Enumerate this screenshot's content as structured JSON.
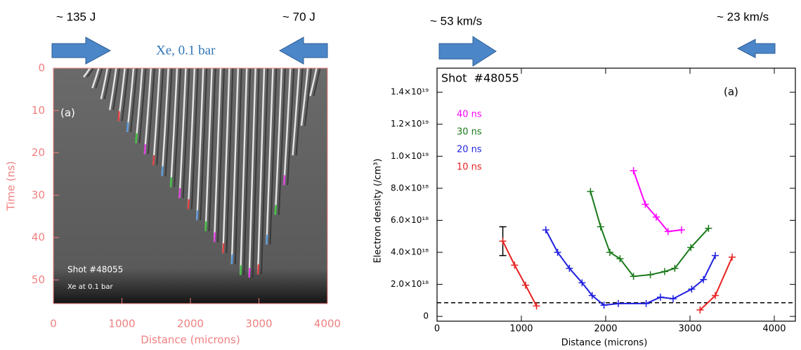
{
  "chart_data": [
    {
      "type": "image",
      "y_inverted": true,
      "axis_color": "#f08080",
      "xlabel": "Distance (microns)",
      "ylabel": "Time (ns)",
      "xlim": [
        0,
        4000
      ],
      "ylim": [
        0,
        55.6
      ],
      "xticks": [
        0,
        1000,
        2000,
        3000,
        4000
      ],
      "yticks": [
        0,
        10,
        20,
        30,
        40,
        50
      ],
      "annotations": [
        "~ 135 J",
        "~ 70 J",
        "Xe, 0.1 bar",
        "(a)",
        "Shot #48055",
        "Xe at 0.1 bar"
      ]
    },
    {
      "type": "line",
      "xlabel": "Distance (microns)",
      "ylabel": "Electron density (/cm³)",
      "xlim": [
        0,
        4250
      ],
      "ylim": [
        -3e+17,
        1.55e+19
      ],
      "xticks": [
        0,
        1000,
        2000,
        3000,
        4000
      ],
      "yticks": [
        0,
        {
          "value": 2e+18,
          "label": "2.0×10¹⁸"
        },
        {
          "value": 4e+18,
          "label": "4.0×10¹⁸"
        },
        {
          "value": 6e+18,
          "label": "6.0×10¹⁸"
        },
        {
          "value": 8e+18,
          "label": "8.0×10¹⁸"
        },
        {
          "value": 1e+19,
          "label": "1.0×10¹⁹"
        },
        {
          "value": 1.2e+19,
          "label": "1.2×10¹⁹"
        },
        {
          "value": 1.4e+19,
          "label": "1.4×10¹⁹"
        }
      ],
      "legend": "upper left",
      "annotations": [
        "~ 53 km/s",
        "~ 23 km/s",
        "Shot  #48055",
        "(a)"
      ],
      "series": [
        {
          "name": "40 ns",
          "color": "#ff00ff",
          "x": [
            2330,
            2470,
            2600,
            2740,
            2900
          ],
          "values": [
            9.1e+18,
            7e+18,
            6.2e+18,
            5.3e+18,
            5.4e+18
          ]
        },
        {
          "name": "30 ns",
          "color": "#1a7a1a",
          "x": [
            1820,
            1940,
            2050,
            2170,
            2330,
            2530,
            2700,
            2820,
            3010,
            3220
          ],
          "values": [
            7.8e+18,
            5.6e+18,
            4e+18,
            3.6e+18,
            2.5e+18,
            2.6e+18,
            2.8e+18,
            3e+18,
            4.3e+18,
            5.5e+18
          ]
        },
        {
          "name": "20 ns",
          "color": "#1f1fe0",
          "x": [
            1290,
            1430,
            1570,
            1720,
            1840,
            1980,
            2150,
            2480,
            2650,
            2800,
            3020,
            3160,
            3300
          ],
          "values": [
            5.4e+18,
            4e+18,
            3e+18,
            2.1e+18,
            1.3e+18,
            7e+17,
            8e+17,
            8e+17,
            1.2e+18,
            1.1e+18,
            1.7e+18,
            2.3e+18,
            3.8e+18
          ]
        },
        {
          "name": "10 ns",
          "color": "#e82020",
          "x": [
            780,
            920,
            1050,
            1180,
            null,
            3120,
            3300,
            3500
          ],
          "values": [
            4.7e+18,
            3.2e+18,
            1.95e+18,
            6.5e+17,
            null,
            4e+17,
            1.3e+18,
            3.7e+18
          ]
        }
      ],
      "error_bar": {
        "x": 780,
        "value": 4.7e+18,
        "error": 9e+17
      },
      "reference_line": 8.5e+17
    }
  ]
}
